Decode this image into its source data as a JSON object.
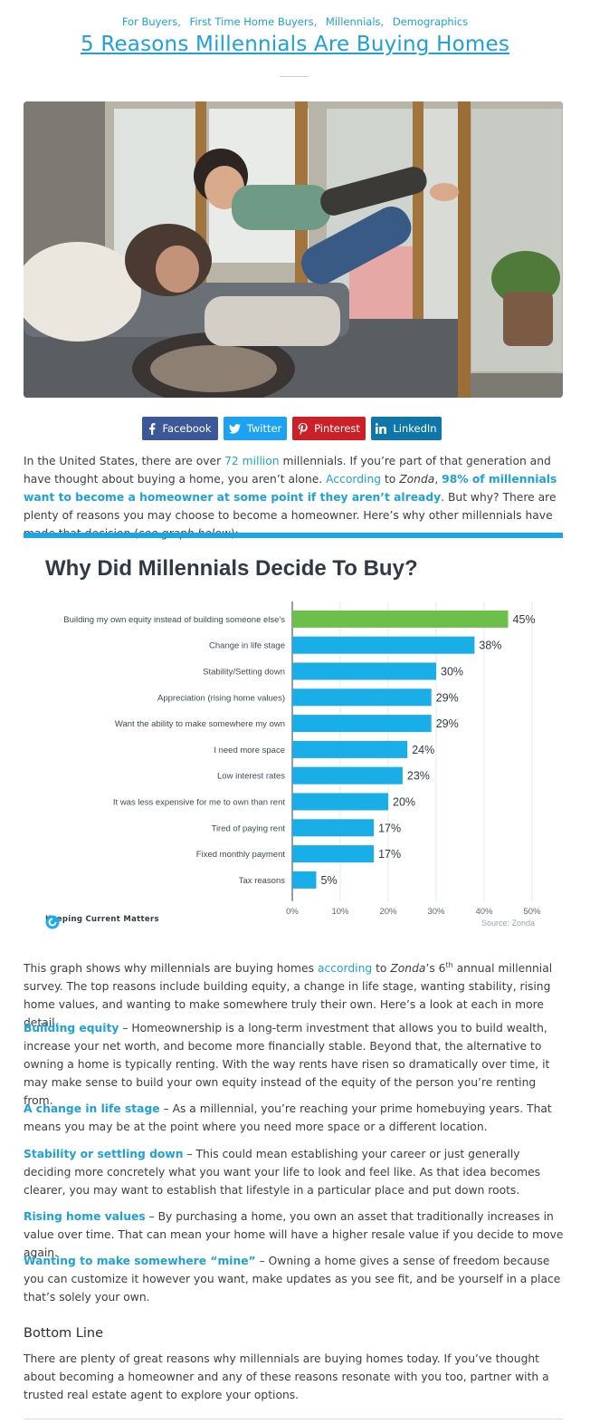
{
  "categories": [
    "For Buyers,",
    "First Time Home Buyers,",
    "Millennials,",
    "Demographics"
  ],
  "title": "5 Reasons Millennials Are Buying Homes",
  "hero_image": "Mother lying on a couch lifting a smiling toddler above her, bright living room with large windows",
  "share": {
    "facebook": "Facebook",
    "twitter": "Twitter",
    "pinterest": "Pinterest",
    "linkedin": "LinkedIn"
  },
  "intro": {
    "p1": "In the United States, there are over ",
    "p1_link": "72 million",
    "p2": " millennials. If you’re part of that generation and have thought about buying a home, you aren’t alone. ",
    "p2_link": "According",
    "p3": " to ",
    "p3_italic": "Zonda",
    "p4": ", ",
    "p4_bold": "98% of millennials want to become a homeowner at some point if they aren’t already",
    "p5": ". But why? There are plenty of reasons you may choose to become a homeowner. Here’s why other millennials have made that decision (",
    "p5_italic": "see graph below",
    "p6": "):"
  },
  "chart": {
    "brand": "Keeping Current Matters",
    "source": "Source: Zonda"
  },
  "chart_data": {
    "type": "bar",
    "orientation": "horizontal",
    "title": "Why Did Millennials Decide To Buy?",
    "categories": [
      "Building my own equity instead of building someone else's",
      "Change in life stage",
      "Stability/Setting down",
      "Appreciation (rising home values)",
      "Want the ability to make somewhere my own",
      "I need more space",
      "Low interest rates",
      "It was less expensive for me to own than rent",
      "Tired of paying rent",
      "Fixed monthly payment",
      "Tax reasons"
    ],
    "values": [
      45,
      38,
      30,
      29,
      29,
      24,
      23,
      20,
      17,
      17,
      5
    ],
    "value_labels": [
      "45%",
      "38%",
      "30%",
      "29%",
      "29%",
      "24%",
      "23%",
      "20%",
      "17%",
      "17%",
      "5%"
    ],
    "xticks": [
      "0%",
      "10%",
      "20%",
      "30%",
      "40%",
      "50%"
    ],
    "xlim": [
      0,
      50
    ],
    "highlight_color": "#6cc04a",
    "bar_color": "#1aaee9",
    "grid": true,
    "source": "Source: Zonda"
  },
  "after_chart": {
    "a": "This graph shows why millennials are buying homes ",
    "a_link": "according",
    "b": " to ",
    "b_italic": "Zonda",
    "c": "’s 6",
    "c_sup": "th",
    "d": " annual millennial survey. The top reasons include building equity, a change in life stage, wanting stability, rising home values, and wanting to make somewhere truly their own. Here’s a look at each in more detail."
  },
  "reasons": [
    {
      "title": "Building equity",
      "text": " – Homeownership is a long-term investment that allows you to build wealth, increase your net worth, and become more financially stable. Beyond that, the alternative to owning a home is typically renting. With the way rents have risen so dramatically over time, it may make sense to build your own equity instead of the equity of the person you’re renting from."
    },
    {
      "title": "A change in life stage",
      "text": " – As a millennial, you’re reaching your prime homebuying years. That means you may be at the point where you need more space or a different location."
    },
    {
      "title": "Stability or settling down",
      "text": " – This could mean establishing your career or just generally deciding more concretely what you want your life to look and feel like. As that idea becomes clearer, you may want to establish that lifestyle in a particular place and put down roots."
    },
    {
      "title": "Rising home values",
      "text": " – By purchasing a home, you own an asset that traditionally increases in value over time. That can mean your home will have a higher resale value if you decide to move again."
    },
    {
      "title": "Wanting to make somewhere “mine”",
      "text": " – Owning a home gives a sense of freedom because you can customize it however you want, make updates as you see fit, and be yourself in a place that’s solely your own."
    }
  ],
  "bottom_line": {
    "heading": "Bottom Line",
    "text": "There are plenty of great reasons why millennials are buying homes today. If you’ve thought about becoming a homeowner and any of these reasons resonate with you too, partner with a trusted real estate agent to explore your options."
  }
}
